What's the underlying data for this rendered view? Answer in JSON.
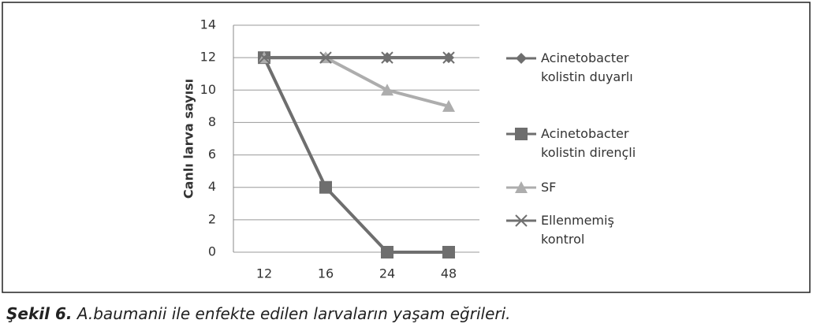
{
  "chart_data": {
    "type": "line",
    "categories": [
      "12",
      "16",
      "24",
      "48"
    ],
    "y_label": "Canlı larva sayısı",
    "series": [
      {
        "name": "Acinetobacter kolistin duyarlı",
        "color": "#6e6e6e",
        "marker": "diamond",
        "values": [
          12,
          12,
          12,
          12
        ]
      },
      {
        "name": "Acinetobacter kolistin dirençli",
        "color": "#6e6e6e",
        "marker": "square",
        "values": [
          12,
          4,
          0,
          0
        ]
      },
      {
        "name": "SF",
        "color": "#adadad",
        "marker": "triangle",
        "values": [
          12,
          12,
          10,
          9
        ]
      },
      {
        "name": "Ellenmemiş kontrol",
        "color": "#707070",
        "marker": "x",
        "values": [
          12,
          12,
          12,
          12
        ]
      }
    ],
    "ylim": [
      0,
      14
    ],
    "yticks": [
      0,
      2,
      4,
      6,
      8,
      10,
      12,
      14
    ],
    "grid": true,
    "legend": "right",
    "figure_label": "Şekil 6.",
    "caption": "A.baumanii ile enfekte edilen larvaların yaşam eğrileri."
  }
}
